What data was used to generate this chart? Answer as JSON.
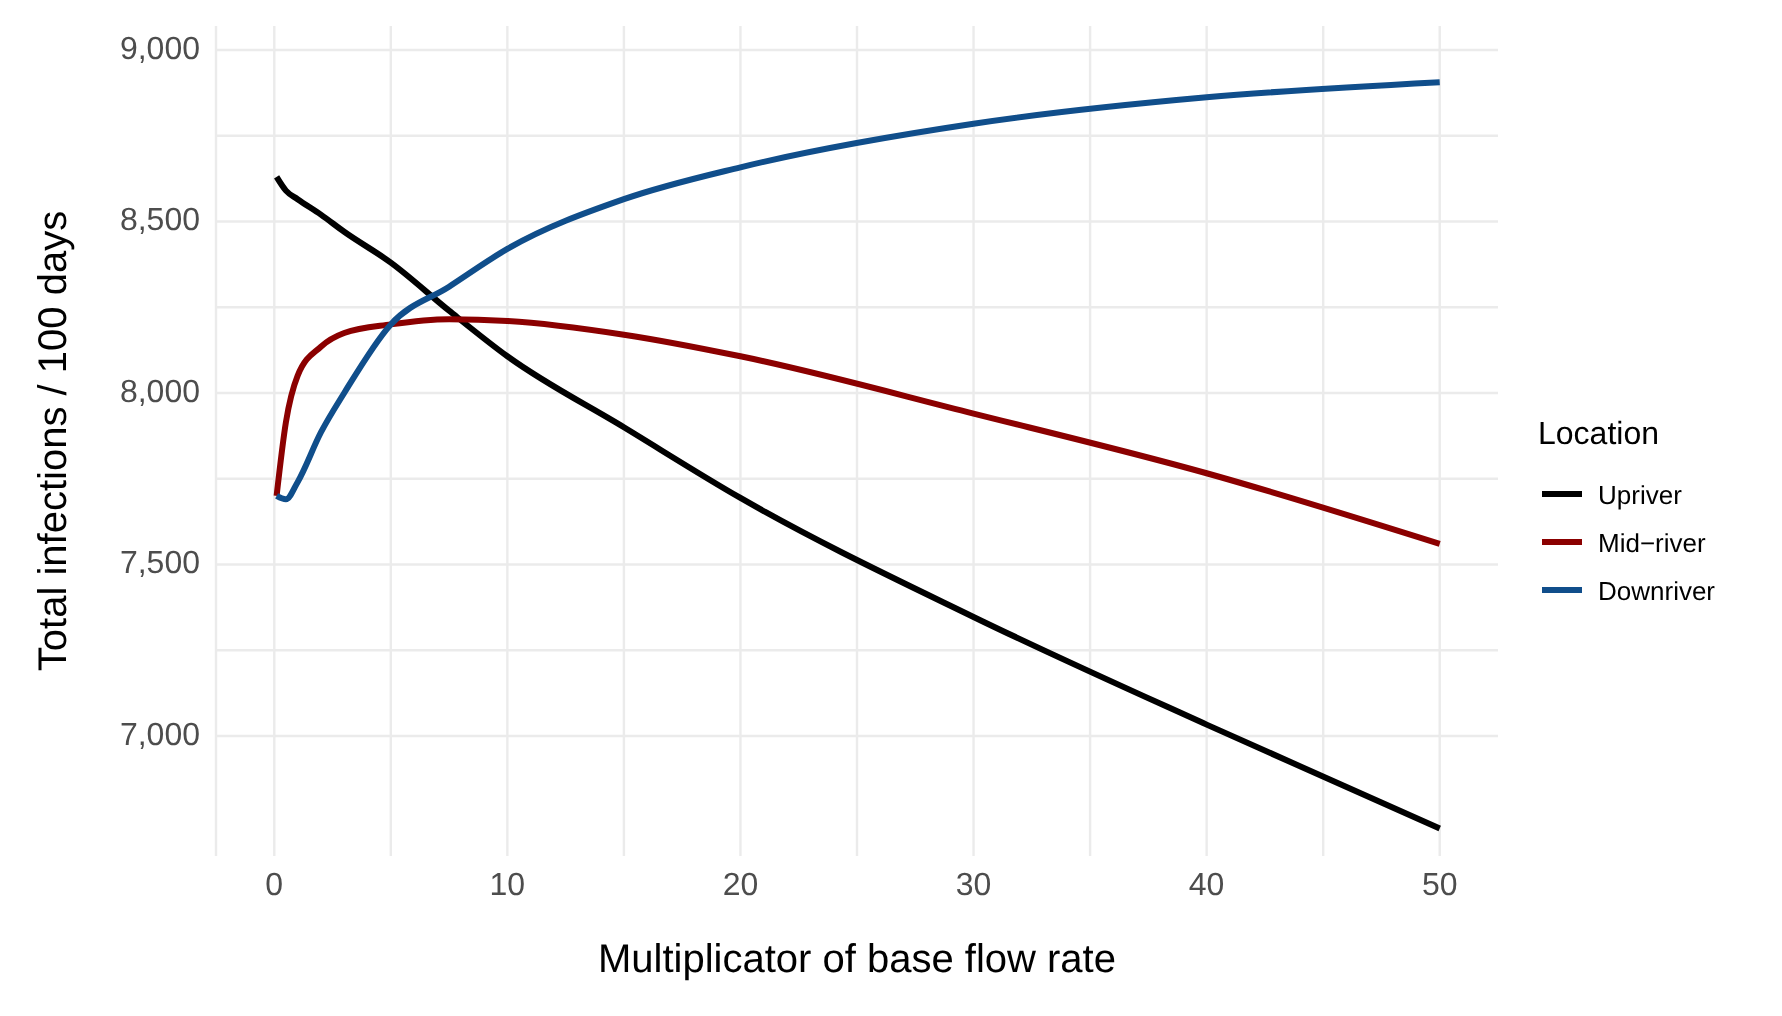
{
  "chart_data": {
    "type": "line",
    "xlabel": "Multiplicator of base flow rate",
    "ylabel": "Total infections / 100 days",
    "legend_title": "Location",
    "x": [
      0.1,
      0.5,
      1,
      2,
      3,
      5,
      7.5,
      10,
      15,
      20,
      30,
      40,
      50
    ],
    "series": [
      {
        "name": "Upriver",
        "color": "#000000",
        "values": [
          8630,
          8590,
          8565,
          8520,
          8470,
          8380,
          8240,
          8107,
          7900,
          7694,
          7347,
          7033,
          6730
        ]
      },
      {
        "name": "Mid−river",
        "color": "#8b0000",
        "values": [
          7700,
          7915,
          8050,
          8135,
          8175,
          8200,
          8215,
          8210,
          8170,
          8107,
          7940,
          7766,
          7560
        ]
      },
      {
        "name": "Downriver",
        "color": "#104e8b",
        "values": [
          7700,
          7690,
          7740,
          7885,
          8000,
          8200,
          8310,
          8420,
          8565,
          8658,
          8785,
          8862,
          8906
        ]
      }
    ],
    "xlim": [
      -2.5,
      52.5
    ],
    "xticks": [
      0,
      10,
      20,
      30,
      40,
      50
    ],
    "ylim": [
      6650,
      9070
    ],
    "yticks": [
      {
        "value": 7000,
        "label": "7,000"
      },
      {
        "value": 7500,
        "label": "7,500"
      },
      {
        "value": 8000,
        "label": "8,000"
      },
      {
        "value": 8500,
        "label": "8,500"
      },
      {
        "value": 9000,
        "label": "9,000"
      }
    ],
    "grid": true,
    "legend": "right",
    "marker": "none",
    "line_style": "solid"
  }
}
